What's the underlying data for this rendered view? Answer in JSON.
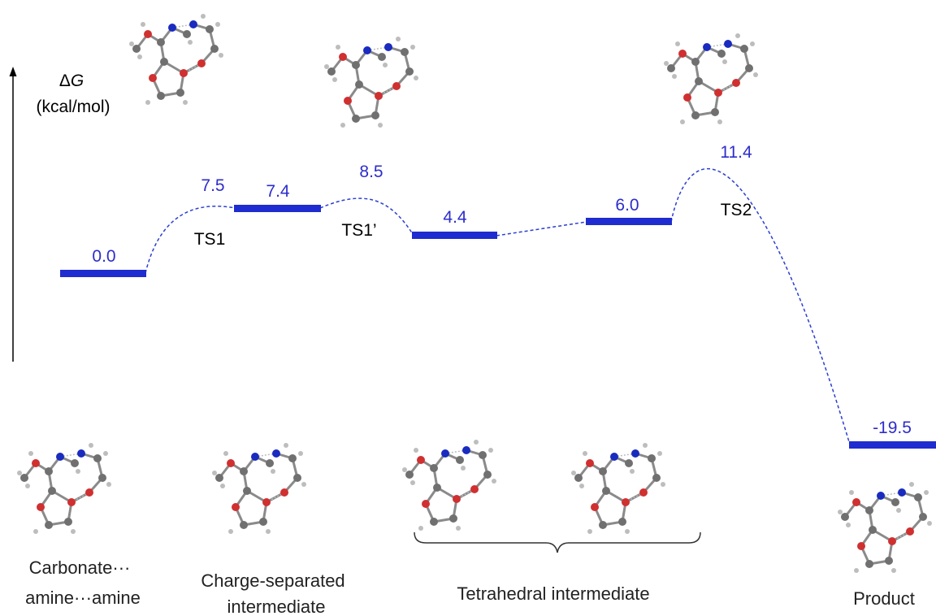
{
  "axis": {
    "symbol": "ΔG",
    "symbol_delta": "Δ",
    "symbol_var": "G",
    "unit": "(kcal/mol)"
  },
  "levels": [
    {
      "id": "reactant",
      "value": "0.0"
    },
    {
      "id": "charge-separated",
      "value": "7.4"
    },
    {
      "id": "tetrahedral-1",
      "value": "4.4"
    },
    {
      "id": "tetrahedral-2",
      "value": "6.0"
    },
    {
      "id": "product",
      "value": "-19.5"
    }
  ],
  "transition_states": [
    {
      "id": "ts1",
      "label": "TS1",
      "value": "7.5"
    },
    {
      "id": "ts1-prime",
      "label": "TS1’",
      "value": "8.5"
    },
    {
      "id": "ts2",
      "label": "TS2",
      "value": "11.4"
    }
  ],
  "captions": {
    "reactant": [
      "Carbonate···",
      "amine···amine"
    ],
    "charge_separated": [
      "Charge-separated",
      "intermediate"
    ],
    "tetrahedral": "Tetrahedral intermediate",
    "product": "Product"
  },
  "colors": {
    "level": "#1f2ccf",
    "value_text": "#2d2dcc",
    "curve": "#2b3fd0"
  },
  "icons": [
    "up-arrow-icon",
    "molecule-structure-icon"
  ]
}
